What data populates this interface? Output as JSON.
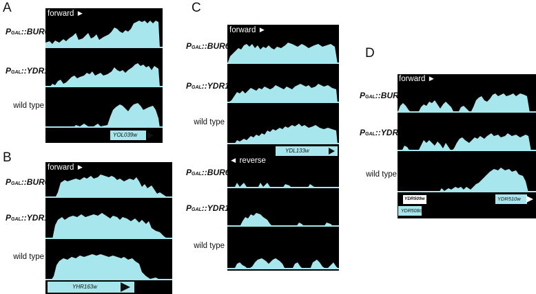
{
  "colors": {
    "signal": "#a6e6ec",
    "background": "#000000",
    "gene_box": "#a6e6ec"
  },
  "panels": {
    "A": {
      "letter": "A",
      "direction": "forward",
      "gene": "YOL039w",
      "tracks": [
        {
          "pre": "P",
          "sub": "GAL",
          "post": "::BUR6"
        },
        {
          "pre": "P",
          "sub": "GAL",
          "post": "::YDR1"
        },
        {
          "plain": "wild type"
        }
      ]
    },
    "B": {
      "letter": "B",
      "direction": "forward",
      "gene": "YHR163w",
      "tracks": [
        {
          "pre": "P",
          "sub": "GAL",
          "post": "::BUR6"
        },
        {
          "pre": "P",
          "sub": "GAL",
          "post": "::YDR1"
        },
        {
          "plain": "wild type"
        }
      ]
    },
    "C": {
      "letter": "C",
      "direction": "forward",
      "direction2": "reverse",
      "gene": "YDL133w",
      "tracks": [
        {
          "pre": "P",
          "sub": "GAL",
          "post": "::BUR6"
        },
        {
          "pre": "P",
          "sub": "GAL",
          "post": "::YDR1"
        },
        {
          "plain": "wild type"
        },
        {
          "pre": "P",
          "sub": "GAL",
          "post": "::BUR6"
        },
        {
          "pre": "P",
          "sub": "GAL",
          "post": "::YDR1"
        },
        {
          "plain": "wild type"
        }
      ]
    },
    "D": {
      "letter": "D",
      "direction": "forward",
      "gene": "YDR510w",
      "gene2": "YDR509w",
      "gene3": "YDR508c",
      "tracks": [
        {
          "pre": "P",
          "sub": "GAL",
          "post": "::BUR6"
        },
        {
          "pre": "P",
          "sub": "GAL",
          "post": "::YDR1"
        },
        {
          "plain": "wild type"
        }
      ]
    }
  }
}
